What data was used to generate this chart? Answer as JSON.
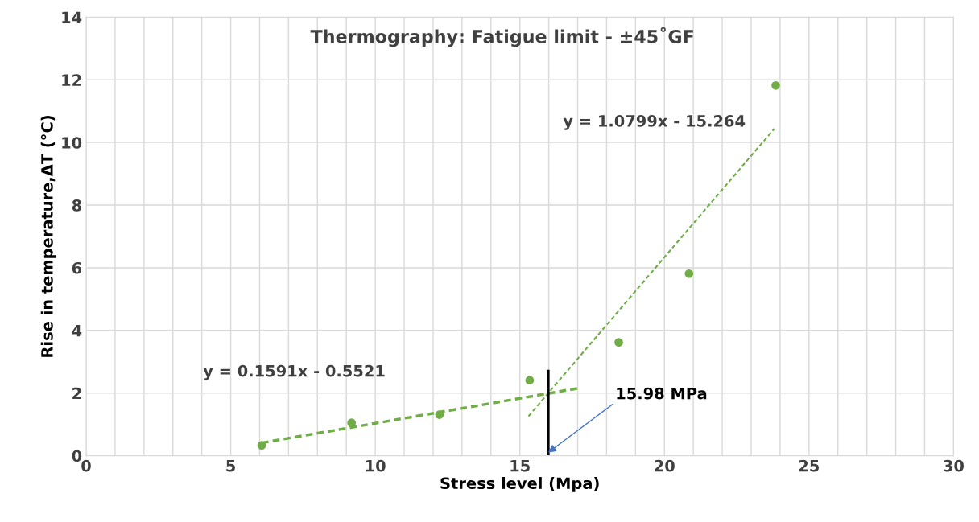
{
  "chart_data": {
    "type": "scatter",
    "title": "Thermography: Fatigue limit - ±45˚GF",
    "xlabel": "Stress level (Mpa)",
    "ylabel": "Rise in temperature,ΔT (°C)",
    "series": [
      {
        "color": "#70ad47",
        "x": [
          6.07,
          9.18,
          12.22,
          15.34,
          18.42,
          20.85,
          23.85
        ],
        "values": [
          0.33,
          1.05,
          1.31,
          2.41,
          3.62,
          5.81,
          11.82
        ],
        "marker": "circle"
      },
      {
        "type": "line",
        "color": "#70ad47",
        "x": [
          6.07,
          17.06
        ],
        "values": [
          0.41,
          2.16
        ],
        "line_style": "dashed",
        "marker": "none"
      },
      {
        "type": "line",
        "color": "#70ad47",
        "x": [
          15.3,
          23.8
        ],
        "values": [
          1.26,
          10.44
        ],
        "line_style": "dashed",
        "marker": "none"
      },
      {
        "type": "line",
        "color": "#000000",
        "x": [
          15.98,
          15.98
        ],
        "values": [
          0,
          2.7
        ],
        "line_style": "solid",
        "marker": "none"
      }
    ],
    "annotations": [
      "y = 0.1591x - 0.5521",
      "y = 1.0799x - 15.264",
      {
        "text": "15.98 MPa",
        "x": 15.98,
        "y": 0.1
      }
    ],
    "xlim": [
      0,
      30
    ],
    "xticks": [
      0,
      5,
      10,
      15,
      20,
      25,
      30
    ],
    "ylim": [
      0,
      14
    ],
    "yticks": [
      0,
      2,
      4,
      6,
      8,
      10,
      12,
      14
    ],
    "grid": true
  }
}
